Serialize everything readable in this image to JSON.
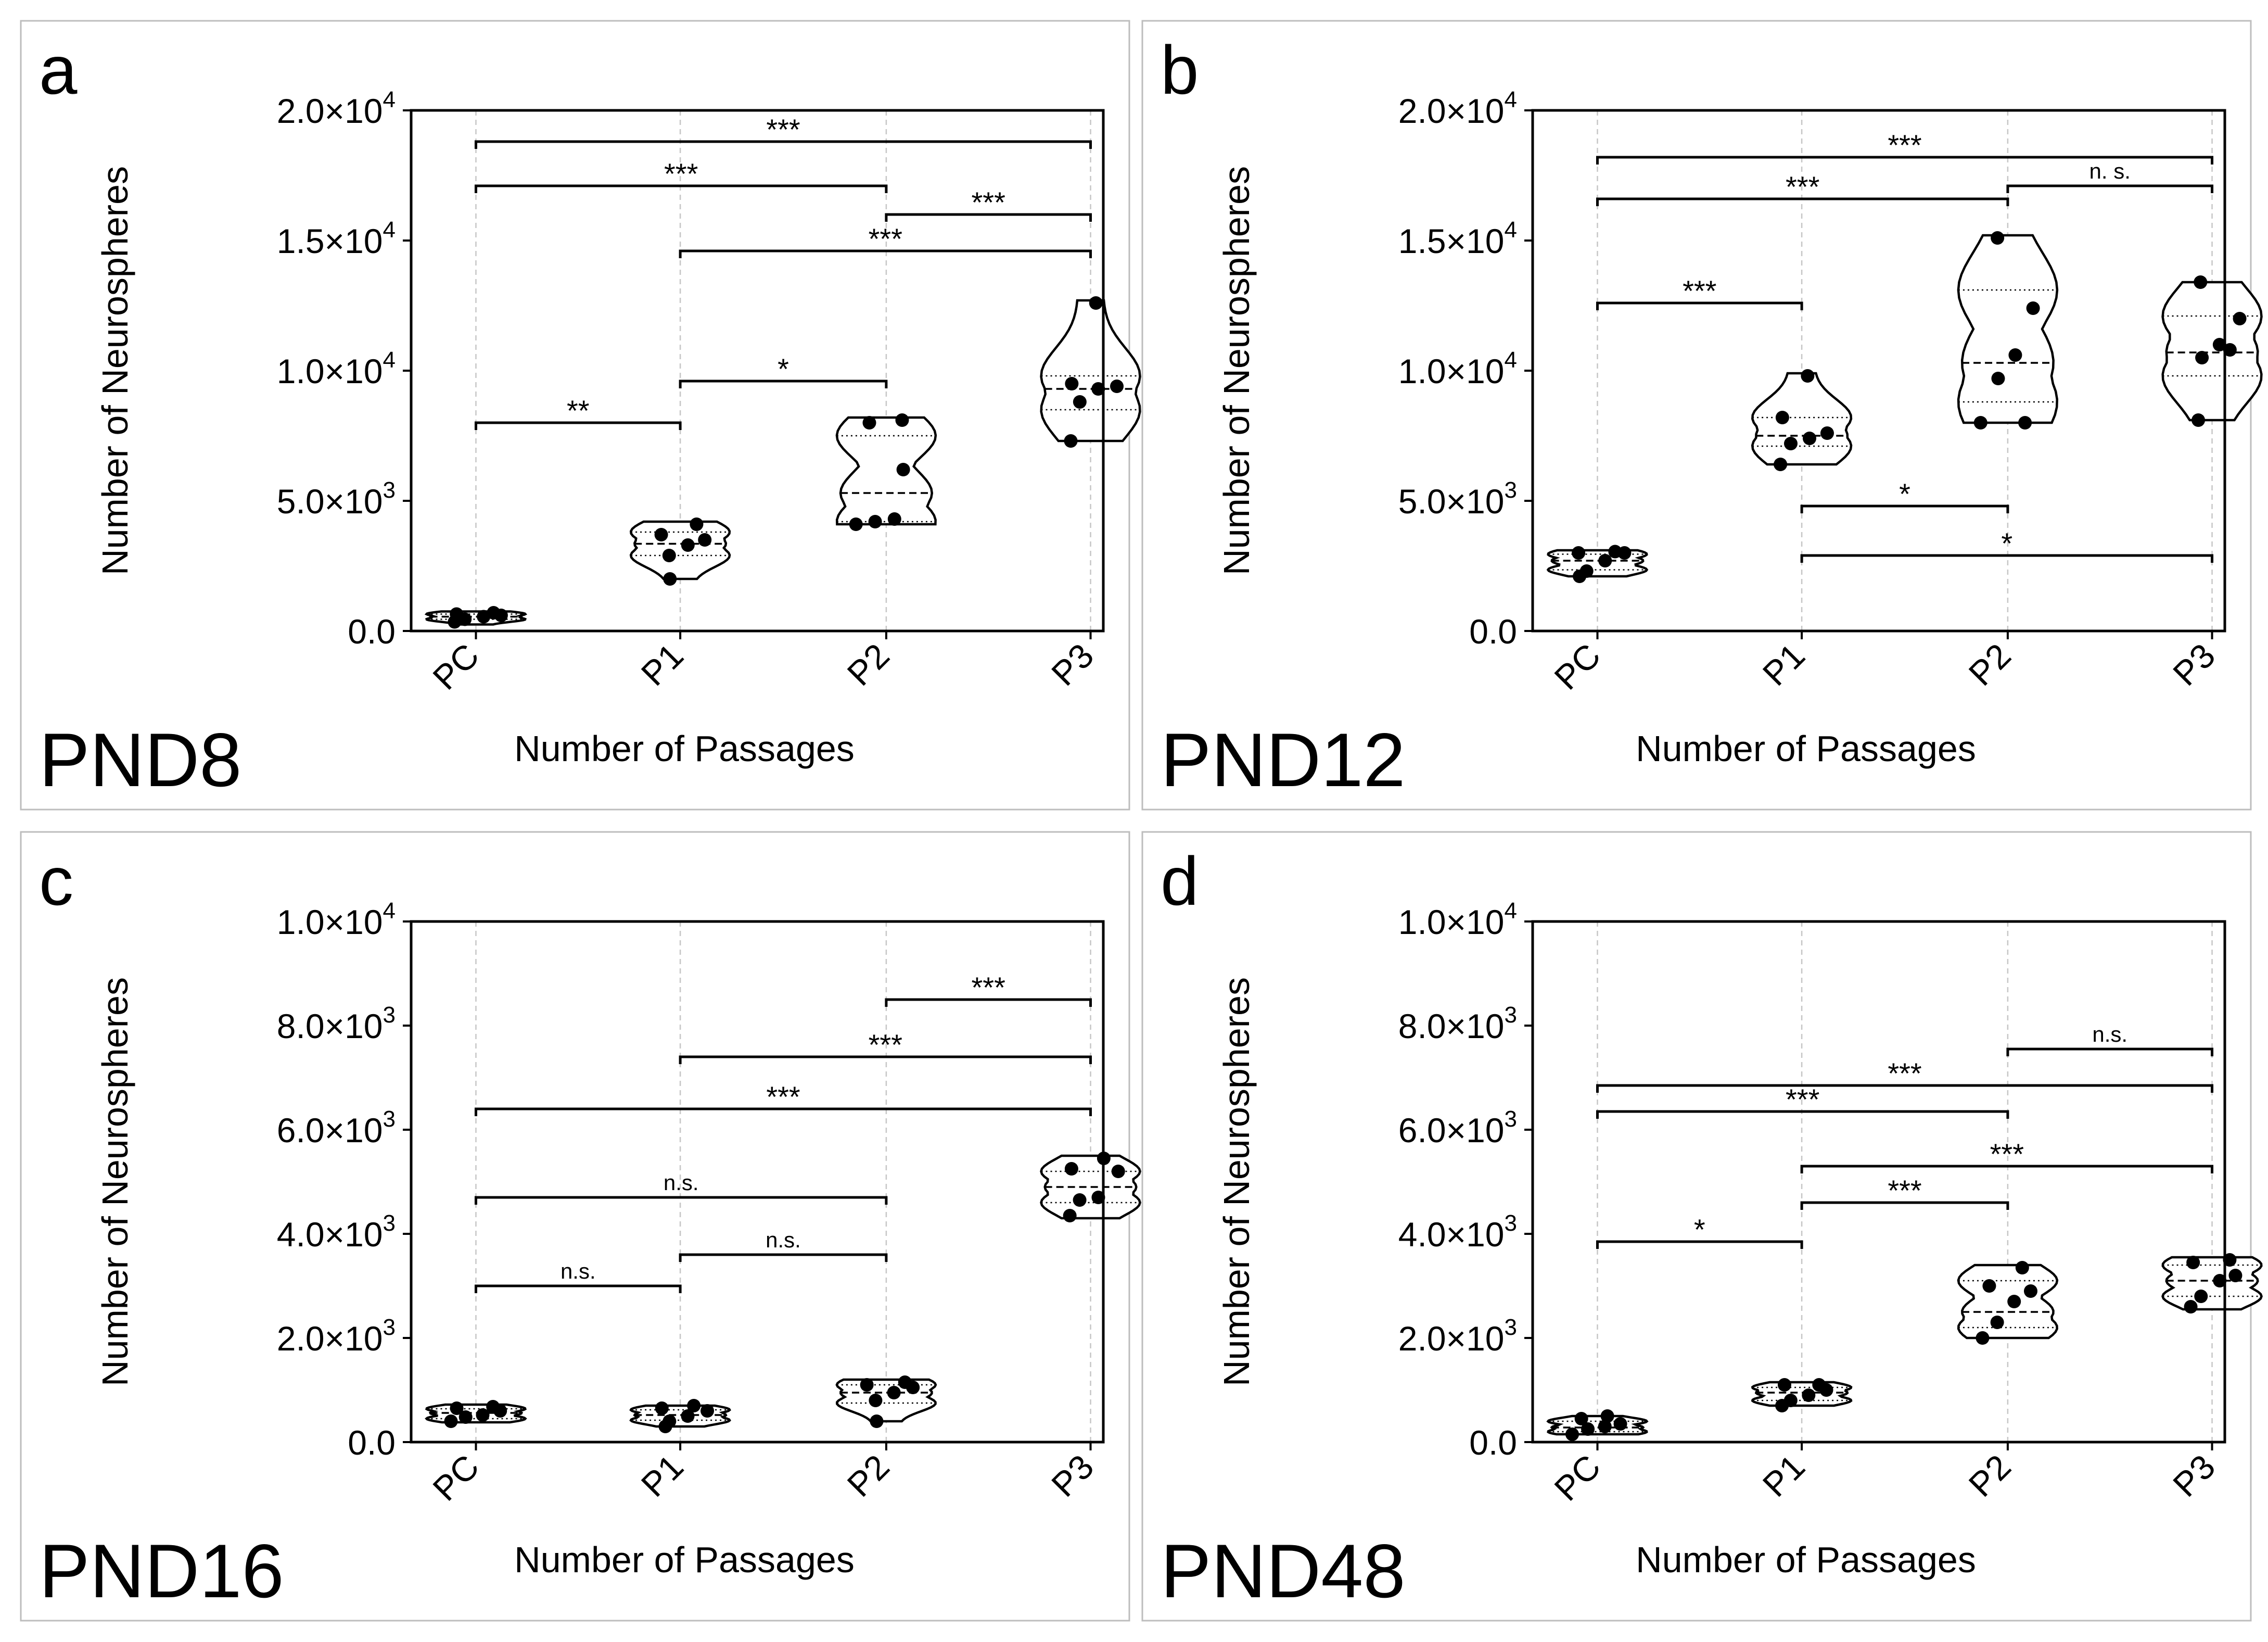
{
  "figure": {
    "x_title": "Number of Passages",
    "y_title": "Number of Neurospheres",
    "categories": [
      "PC",
      "P1",
      "P2",
      "P3"
    ]
  },
  "chart_data": [
    {
      "panel": "a",
      "label": "PND8",
      "type": "violin",
      "xlabel": "Number of Passages",
      "ylabel": "Number of Neurospheres",
      "categories": [
        "PC",
        "P1",
        "P2",
        "P3"
      ],
      "ylim": [
        0,
        20000
      ],
      "yticks": [
        0,
        5000,
        10000,
        15000,
        20000
      ],
      "ytick_labels": [
        [
          "0.0",
          ""
        ],
        [
          "5.0×10",
          "3"
        ],
        [
          "1.0×10",
          "4"
        ],
        [
          "1.5×10",
          "4"
        ],
        [
          "2.0×10",
          "4"
        ]
      ],
      "groups": [
        {
          "category": "PC",
          "min": 250,
          "max": 750,
          "q1": 450,
          "median": 550,
          "q3": 650,
          "points": [
            350,
            450,
            550,
            600,
            650,
            700
          ]
        },
        {
          "category": "P1",
          "min": 2000,
          "max": 4200,
          "q1": 2900,
          "median": 3350,
          "q3": 3800,
          "points": [
            2000,
            2900,
            3300,
            3500,
            3700,
            4100
          ]
        },
        {
          "category": "P2",
          "min": 4100,
          "max": 8200,
          "q1": 4200,
          "median": 5300,
          "q3": 7500,
          "points": [
            4100,
            4200,
            4300,
            6200,
            8000,
            8100
          ]
        },
        {
          "category": "P3",
          "min": 7300,
          "max": 12700,
          "q1": 8500,
          "median": 9300,
          "q3": 9800,
          "points": [
            7300,
            8800,
            9300,
            9400,
            9500,
            12600
          ]
        }
      ],
      "comparisons": [
        {
          "from": "PC",
          "to": "P1",
          "y": 8000,
          "label": "**"
        },
        {
          "from": "P1",
          "to": "P2",
          "y": 9600,
          "label": "*"
        },
        {
          "from": "P1",
          "to": "P3",
          "y": 14600,
          "label": "***"
        },
        {
          "from": "P2",
          "to": "P3",
          "y": 16000,
          "label": "***"
        },
        {
          "from": "PC",
          "to": "P2",
          "y": 17100,
          "label": "***"
        },
        {
          "from": "PC",
          "to": "P3",
          "y": 18800,
          "label": "***"
        }
      ]
    },
    {
      "panel": "b",
      "label": "PND12",
      "type": "violin",
      "xlabel": "Number of Passages",
      "ylabel": "Number of Neurospheres",
      "categories": [
        "PC",
        "P1",
        "P2",
        "P3"
      ],
      "ylim": [
        0,
        20000
      ],
      "yticks": [
        0,
        5000,
        10000,
        15000,
        20000
      ],
      "ytick_labels": [
        [
          "0.0",
          ""
        ],
        [
          "5.0×10",
          "3"
        ],
        [
          "1.0×10",
          "4"
        ],
        [
          "1.5×10",
          "4"
        ],
        [
          "2.0×10",
          "4"
        ]
      ],
      "groups": [
        {
          "category": "PC",
          "min": 2100,
          "max": 3100,
          "q1": 2350,
          "median": 2700,
          "q3": 2950,
          "points": [
            2100,
            2300,
            2700,
            3000,
            3000,
            3050
          ]
        },
        {
          "category": "P1",
          "min": 6400,
          "max": 9900,
          "q1": 7100,
          "median": 7500,
          "q3": 8200,
          "points": [
            6400,
            7200,
            7400,
            7600,
            8200,
            9800
          ]
        },
        {
          "category": "P2",
          "min": 8000,
          "max": 15200,
          "q1": 8800,
          "median": 10300,
          "q3": 13100,
          "points": [
            8000,
            9700,
            10600,
            12400,
            15100,
            8000
          ]
        },
        {
          "category": "P3",
          "min": 8100,
          "max": 13400,
          "q1": 9800,
          "median": 10700,
          "q3": 12100,
          "points": [
            8100,
            10500,
            11000,
            12000,
            13400,
            10800
          ]
        }
      ],
      "comparisons": [
        {
          "from": "P1",
          "to": "P2",
          "y": 4800,
          "label": "*"
        },
        {
          "from": "P1",
          "to": "P3",
          "y": 2900,
          "label": "*"
        },
        {
          "from": "PC",
          "to": "P1",
          "y": 12600,
          "label": "***"
        },
        {
          "from": "PC",
          "to": "P2",
          "y": 16600,
          "label": "***"
        },
        {
          "from": "P2",
          "to": "P3",
          "y": 17100,
          "label": "n. s."
        },
        {
          "from": "PC",
          "to": "P3",
          "y": 18200,
          "label": "***"
        }
      ]
    },
    {
      "panel": "c",
      "label": "PND16",
      "type": "violin",
      "xlabel": "Number of Passages",
      "ylabel": "Number of Neurospheres",
      "categories": [
        "PC",
        "P1",
        "P2",
        "P3"
      ],
      "ylim": [
        0,
        10000
      ],
      "yticks": [
        0,
        2000,
        4000,
        6000,
        8000,
        10000
      ],
      "ytick_labels": [
        [
          "0.0",
          ""
        ],
        [
          "2.0×10",
          "3"
        ],
        [
          "4.0×10",
          "3"
        ],
        [
          "6.0×10",
          "3"
        ],
        [
          "8.0×10",
          "3"
        ],
        [
          "1.0×10",
          "4"
        ]
      ],
      "groups": [
        {
          "category": "PC",
          "min": 380,
          "max": 720,
          "q1": 450,
          "median": 560,
          "q3": 640,
          "points": [
            400,
            480,
            520,
            600,
            650,
            680
          ]
        },
        {
          "category": "P1",
          "min": 300,
          "max": 700,
          "q1": 420,
          "median": 520,
          "q3": 620,
          "points": [
            300,
            400,
            500,
            600,
            650,
            700
          ]
        },
        {
          "category": "P2",
          "min": 400,
          "max": 1200,
          "q1": 750,
          "median": 950,
          "q3": 1100,
          "points": [
            400,
            800,
            950,
            1050,
            1100,
            1150
          ]
        },
        {
          "category": "P3",
          "min": 4300,
          "max": 5500,
          "q1": 4600,
          "median": 4900,
          "q3": 5200,
          "points": [
            4350,
            4650,
            4700,
            5200,
            5250,
            5450
          ]
        }
      ],
      "comparisons": [
        {
          "from": "PC",
          "to": "P1",
          "y": 3000,
          "label": "n.s."
        },
        {
          "from": "P1",
          "to": "P2",
          "y": 3600,
          "label": "n.s."
        },
        {
          "from": "PC",
          "to": "P2",
          "y": 4700,
          "label": "n.s."
        },
        {
          "from": "PC",
          "to": "P3",
          "y": 6400,
          "label": "***"
        },
        {
          "from": "P1",
          "to": "P3",
          "y": 7400,
          "label": "***"
        },
        {
          "from": "P2",
          "to": "P3",
          "y": 8500,
          "label": "***"
        }
      ]
    },
    {
      "panel": "d",
      "label": "PND48",
      "type": "violin",
      "xlabel": "Number of Passages",
      "ylabel": "Number of Neurospheres",
      "categories": [
        "PC",
        "P1",
        "P2",
        "P3"
      ],
      "ylim": [
        0,
        10000
      ],
      "yticks": [
        0,
        2000,
        4000,
        6000,
        8000,
        10000
      ],
      "ytick_labels": [
        [
          "0.0",
          ""
        ],
        [
          "2.0×10",
          "3"
        ],
        [
          "4.0×10",
          "3"
        ],
        [
          "6.0×10",
          "3"
        ],
        [
          "8.0×10",
          "3"
        ],
        [
          "1.0×10",
          "4"
        ]
      ],
      "groups": [
        {
          "category": "PC",
          "min": 150,
          "max": 500,
          "q1": 200,
          "median": 280,
          "q3": 400,
          "points": [
            150,
            250,
            300,
            350,
            450,
            500
          ]
        },
        {
          "category": "P1",
          "min": 700,
          "max": 1150,
          "q1": 800,
          "median": 950,
          "q3": 1050,
          "points": [
            700,
            800,
            900,
            1000,
            1100,
            1100
          ]
        },
        {
          "category": "P2",
          "min": 2000,
          "max": 3400,
          "q1": 2200,
          "median": 2500,
          "q3": 3100,
          "points": [
            2000,
            2300,
            2700,
            2900,
            3000,
            3350
          ]
        },
        {
          "category": "P3",
          "min": 2550,
          "max": 3550,
          "q1": 2800,
          "median": 3100,
          "q3": 3400,
          "points": [
            2600,
            2800,
            3100,
            3200,
            3450,
            3500
          ]
        }
      ],
      "comparisons": [
        {
          "from": "PC",
          "to": "P1",
          "y": 3850,
          "label": "*"
        },
        {
          "from": "P1",
          "to": "P2",
          "y": 4600,
          "label": "***"
        },
        {
          "from": "P1",
          "to": "P3",
          "y": 5300,
          "label": "***"
        },
        {
          "from": "PC",
          "to": "P2",
          "y": 6350,
          "label": "***"
        },
        {
          "from": "PC",
          "to": "P3",
          "y": 6850,
          "label": "***"
        },
        {
          "from": "P2",
          "to": "P3",
          "y": 7550,
          "label": "n.s."
        }
      ]
    }
  ]
}
